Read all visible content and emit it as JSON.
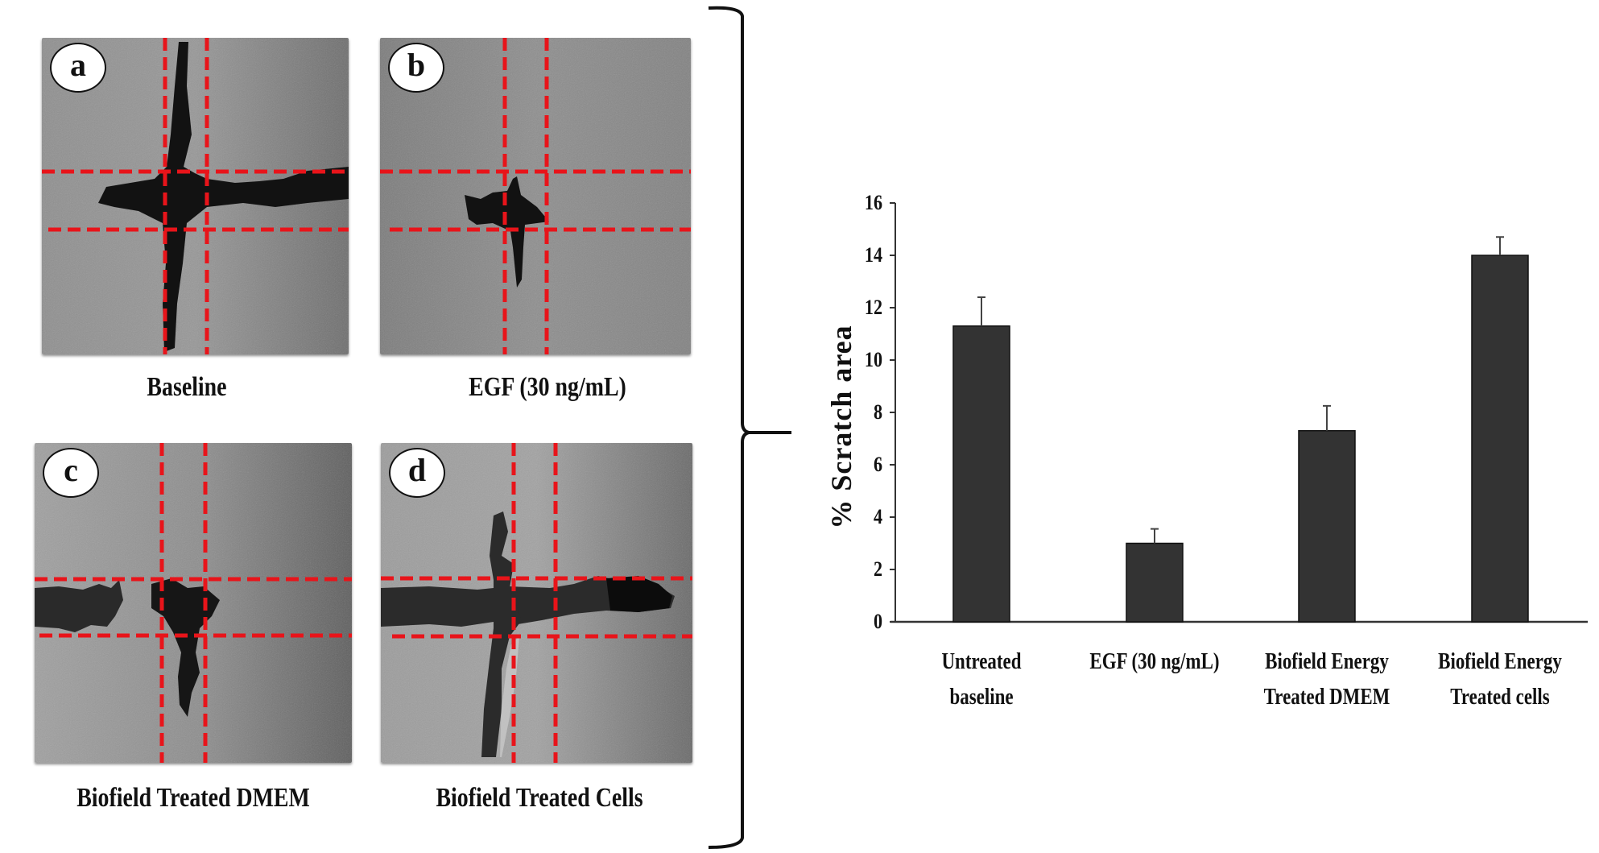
{
  "panels": [
    {
      "letter": "a",
      "caption": "Baseline"
    },
    {
      "letter": "b",
      "caption": "EGF (30 ng/mL)"
    },
    {
      "letter": "c",
      "caption": "Biofield Treated DMEM"
    },
    {
      "letter": "d",
      "caption": "Biofield Treated Cells"
    }
  ],
  "colors": {
    "bar": "#333333",
    "guide_line": "#e8141a",
    "scratch": "#121212",
    "cell_bg": "#8a8a8a"
  },
  "chart_data": {
    "type": "bar",
    "title": "",
    "xlabel": "",
    "ylabel": "% Scratch area",
    "ylim": [
      0,
      16
    ],
    "yticks": [
      0,
      2,
      4,
      6,
      8,
      10,
      12,
      14,
      16
    ],
    "grid": false,
    "legend": null,
    "categories": [
      [
        "Untreated",
        "baseline"
      ],
      [
        "EGF (30 ng/mL)",
        ""
      ],
      [
        "Biofield Energy",
        "Treated DMEM"
      ],
      [
        "Biofield Energy",
        "Treated cells"
      ]
    ],
    "values": [
      11.3,
      3.0,
      7.3,
      14.0
    ],
    "error": [
      1.1,
      0.55,
      0.95,
      0.7
    ]
  }
}
